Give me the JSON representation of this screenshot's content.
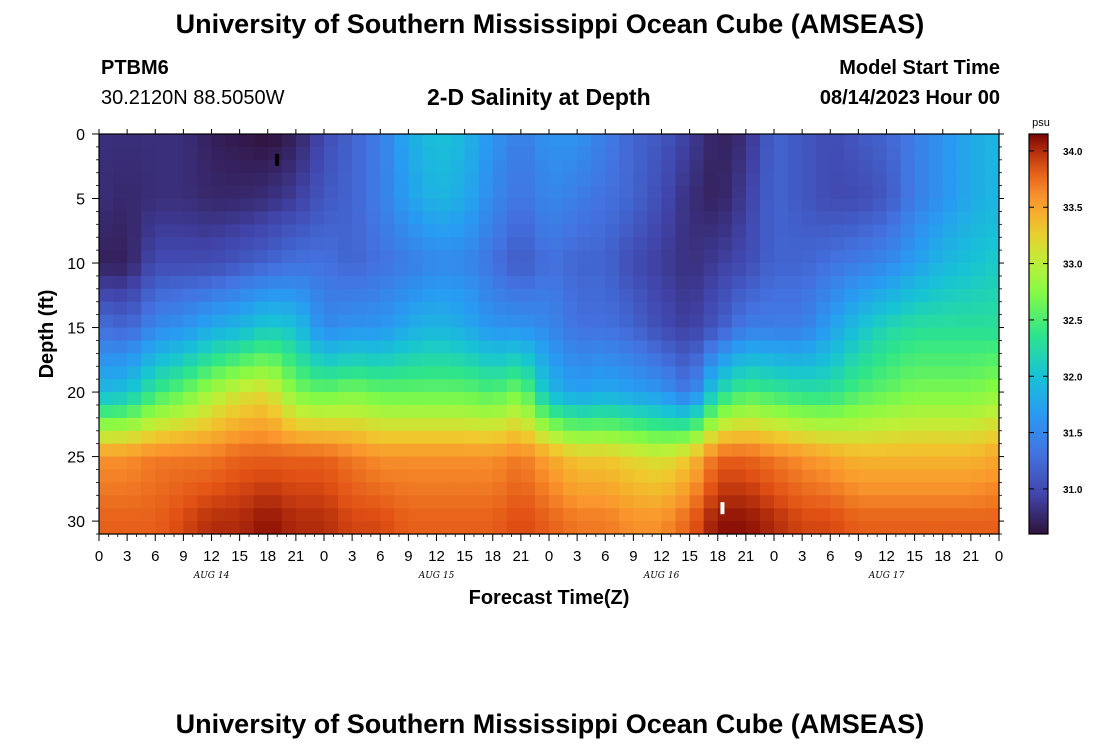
{
  "header": {
    "title": "University of Southern Mississippi Ocean Cube (AMSEAS)",
    "station": "PTBM6",
    "coords": "30.2120N  88.5050W",
    "plot_title": "2-D Salinity at Depth",
    "model_label": "Model Start Time",
    "model_time": "08/14/2023 Hour 00"
  },
  "footer": {
    "title": "University of Southern Mississippi Ocean Cube (AMSEAS)"
  },
  "chart_data": {
    "type": "heatmap",
    "title": "2-D Salinity at Depth",
    "xlabel": "Forecast Time(Z)",
    "ylabel": "Depth (ft)",
    "x_hours": [
      0,
      96
    ],
    "x_tick_step_hours": 3,
    "x_tick_labels": [
      "0",
      "3",
      "6",
      "9",
      "12",
      "15",
      "18",
      "21",
      "0",
      "3",
      "6",
      "9",
      "12",
      "15",
      "18",
      "21",
      "0",
      "3",
      "6",
      "9",
      "12",
      "15",
      "18",
      "21",
      "0",
      "3",
      "6",
      "9",
      "12",
      "15",
      "18",
      "21",
      "0"
    ],
    "day_labels": [
      {
        "label": "AUG 14",
        "hour": 12
      },
      {
        "label": "AUG 15",
        "hour": 36
      },
      {
        "label": "AUG 16",
        "hour": 60
      },
      {
        "label": "AUG 17",
        "hour": 84
      }
    ],
    "ylim": [
      0,
      31
    ],
    "y_ticks": [
      0,
      5,
      10,
      15,
      20,
      25,
      30
    ],
    "colorbar": {
      "unit": "psu",
      "range": [
        30.6,
        34.15
      ],
      "ticks": [
        "31.0",
        "31.5",
        "32.0",
        "32.5",
        "33.0",
        "33.5",
        "34.0"
      ]
    },
    "markers": [
      {
        "hour": 19,
        "depth": 2,
        "kind": "max-surface",
        "color": "#000000"
      },
      {
        "hour": 66.5,
        "depth": 29,
        "kind": "max-bottom",
        "color": "#ffffff"
      }
    ],
    "depth_profile_ft": [
      0,
      5,
      10,
      15,
      20,
      25,
      30
    ],
    "salinity_columns": [
      {
        "hour": 0,
        "values": [
          30.8,
          30.8,
          30.7,
          31.3,
          31.9,
          33.6,
          33.8
        ]
      },
      {
        "hour": 3,
        "values": [
          30.8,
          30.75,
          30.7,
          31.2,
          32.0,
          33.6,
          33.8
        ]
      },
      {
        "hour": 6,
        "values": [
          30.8,
          30.8,
          31.0,
          31.5,
          32.4,
          33.7,
          33.8
        ]
      },
      {
        "hour": 9,
        "values": [
          30.8,
          30.8,
          31.0,
          31.6,
          32.6,
          33.7,
          33.9
        ]
      },
      {
        "hour": 12,
        "values": [
          30.7,
          30.75,
          31.0,
          31.8,
          32.9,
          33.7,
          34.0
        ]
      },
      {
        "hour": 15,
        "values": [
          30.65,
          30.75,
          31.1,
          31.9,
          33.1,
          33.8,
          34.0
        ]
      },
      {
        "hour": 18,
        "values": [
          30.6,
          30.8,
          31.2,
          32.1,
          33.2,
          33.8,
          34.1
        ]
      },
      {
        "hour": 21,
        "values": [
          30.7,
          30.9,
          31.3,
          32.0,
          32.7,
          33.8,
          34.0
        ]
      },
      {
        "hour": 24,
        "values": [
          31.0,
          31.1,
          31.3,
          31.5,
          32.6,
          33.8,
          34.0
        ]
      },
      {
        "hour": 27,
        "values": [
          31.2,
          31.2,
          31.2,
          31.6,
          32.7,
          33.7,
          33.9
        ]
      },
      {
        "hour": 30,
        "values": [
          31.4,
          31.4,
          31.3,
          31.6,
          32.6,
          33.6,
          33.9
        ]
      },
      {
        "hour": 33,
        "values": [
          31.8,
          31.7,
          31.4,
          31.8,
          32.6,
          33.6,
          33.8
        ]
      },
      {
        "hour": 36,
        "values": [
          32.0,
          31.9,
          31.5,
          31.9,
          32.6,
          33.6,
          33.8
        ]
      },
      {
        "hour": 39,
        "values": [
          31.9,
          31.8,
          31.5,
          31.8,
          32.6,
          33.6,
          33.8
        ]
      },
      {
        "hour": 42,
        "values": [
          31.6,
          31.5,
          31.3,
          31.6,
          32.5,
          33.6,
          33.8
        ]
      },
      {
        "hour": 45,
        "values": [
          31.4,
          31.3,
          31.1,
          31.6,
          32.7,
          33.7,
          33.9
        ]
      },
      {
        "hour": 48,
        "values": [
          31.6,
          31.5,
          31.3,
          31.5,
          31.9,
          33.5,
          33.8
        ]
      },
      {
        "hour": 51,
        "values": [
          31.6,
          31.4,
          31.2,
          31.3,
          31.7,
          33.3,
          33.7
        ]
      },
      {
        "hour": 54,
        "values": [
          31.4,
          31.3,
          31.2,
          31.3,
          31.8,
          33.3,
          33.7
        ]
      },
      {
        "hour": 57,
        "values": [
          31.2,
          31.2,
          31.0,
          31.2,
          31.7,
          33.2,
          33.6
        ]
      },
      {
        "hour": 60,
        "values": [
          31.1,
          31.0,
          30.9,
          31.0,
          31.6,
          33.1,
          33.6
        ]
      },
      {
        "hour": 63,
        "values": [
          30.9,
          30.8,
          30.8,
          30.9,
          31.3,
          33.3,
          33.8
        ]
      },
      {
        "hour": 66,
        "values": [
          30.7,
          30.7,
          30.9,
          31.1,
          32.2,
          33.8,
          34.1
        ]
      },
      {
        "hour": 69,
        "values": [
          30.8,
          30.9,
          31.0,
          31.4,
          32.5,
          33.8,
          34.1
        ]
      },
      {
        "hour": 72,
        "values": [
          31.2,
          31.2,
          31.2,
          31.4,
          32.4,
          33.7,
          34.0
        ]
      },
      {
        "hour": 75,
        "values": [
          31.1,
          31.1,
          31.2,
          31.4,
          32.3,
          33.6,
          33.9
        ]
      },
      {
        "hour": 78,
        "values": [
          31.0,
          31.0,
          31.3,
          31.7,
          32.3,
          33.5,
          33.9
        ]
      },
      {
        "hour": 81,
        "values": [
          31.1,
          31.0,
          31.4,
          32.0,
          32.5,
          33.4,
          33.8
        ]
      },
      {
        "hour": 84,
        "values": [
          31.2,
          31.1,
          31.5,
          32.2,
          32.6,
          33.4,
          33.8
        ]
      },
      {
        "hour": 87,
        "values": [
          31.4,
          31.4,
          31.7,
          32.3,
          32.7,
          33.4,
          33.8
        ]
      },
      {
        "hour": 90,
        "values": [
          31.6,
          31.6,
          31.9,
          32.3,
          32.7,
          33.4,
          33.8
        ]
      },
      {
        "hour": 93,
        "values": [
          31.8,
          31.8,
          32.0,
          32.3,
          32.7,
          33.4,
          33.8
        ]
      },
      {
        "hour": 96,
        "values": [
          31.9,
          31.9,
          32.1,
          32.3,
          32.8,
          33.5,
          33.8
        ]
      }
    ]
  }
}
